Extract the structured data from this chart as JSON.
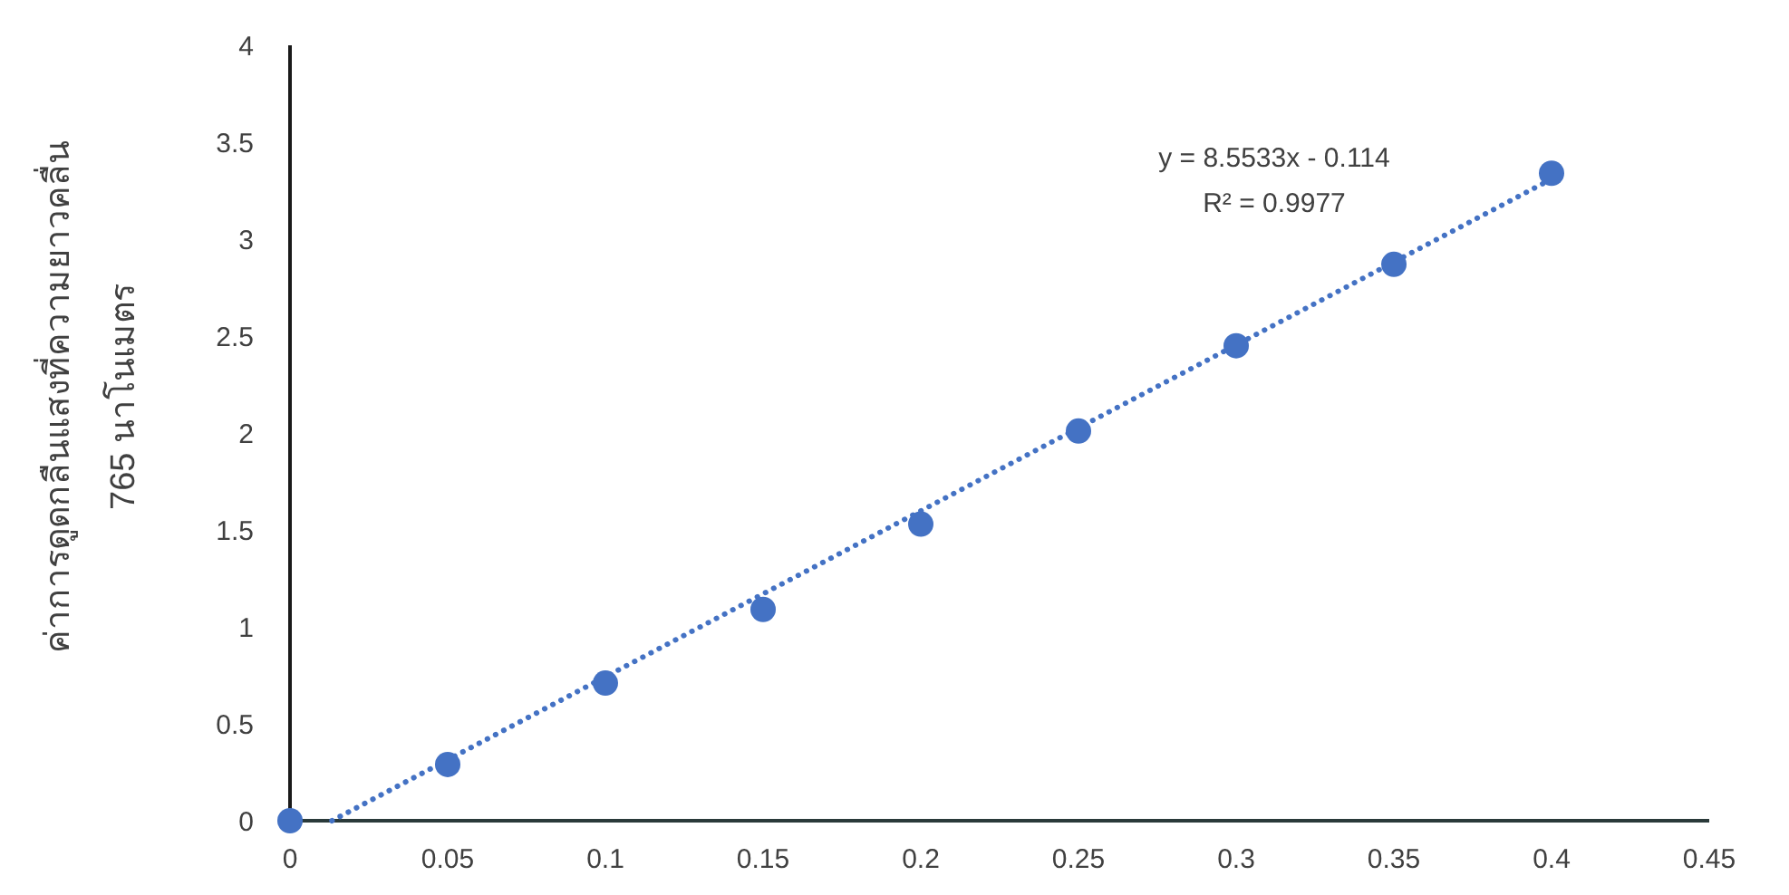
{
  "chart_data": {
    "type": "scatter",
    "ylabel": "ค่าการดูดกลืนแสงที่ความยาวคลื่น\n765 นาโนเมตร",
    "x": [
      0,
      0.05,
      0.1,
      0.15,
      0.2,
      0.25,
      0.3,
      0.35,
      0.4
    ],
    "series": [
      {
        "color": "#4472c4",
        "marker": "circle",
        "values": [
          0,
          0.29,
          0.71,
          1.09,
          1.53,
          2.01,
          2.45,
          2.87,
          3.34
        ]
      },
      {
        "type": "line",
        "color": "#4472c4",
        "line_style": "dotted",
        "x": [
          0.0133,
          0.4
        ],
        "values": [
          0,
          3.31
        ]
      }
    ],
    "xlim": [
      0,
      0.45
    ],
    "xticks": [
      0,
      0.05,
      0.1,
      0.15,
      0.2,
      0.25,
      0.3,
      0.35,
      0.4,
      0.45
    ],
    "ylim": [
      0,
      4
    ],
    "yticks": [
      0,
      0.5,
      1,
      1.5,
      2,
      2.5,
      3,
      3.5,
      4
    ],
    "grid": false,
    "annotations": [
      "y = 8.5533x - 0.114",
      "R² = 0.9977"
    ]
  }
}
